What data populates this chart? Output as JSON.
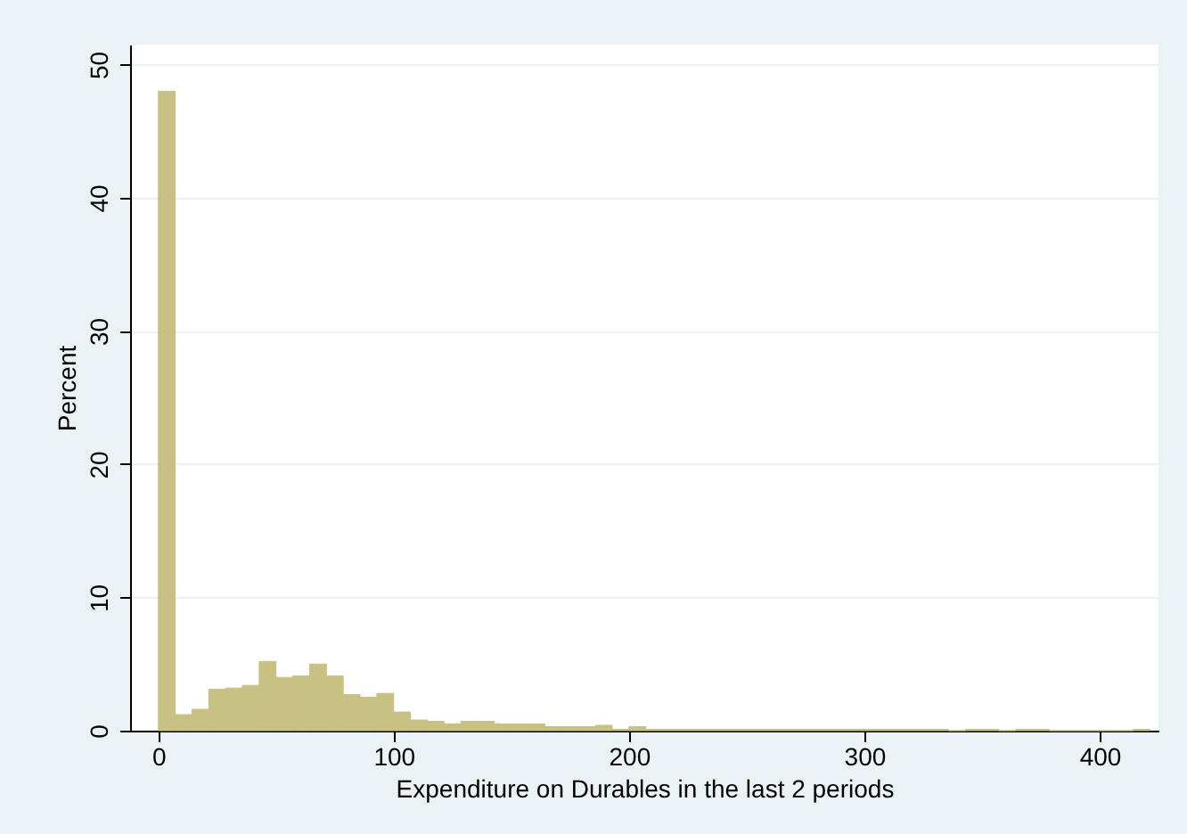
{
  "chart_data": {
    "type": "histogram",
    "xlabel": "Expenditure on Durables in the last 2 periods",
    "ylabel": "Percent",
    "bins": [
      0,
      7.143,
      14.286,
      21.429,
      28.571,
      35.714,
      42.857,
      50,
      57.143,
      64.286,
      71.429,
      78.571,
      85.714,
      92.857,
      100,
      107.143,
      114.286,
      121.429,
      128.571,
      135.714,
      142.857,
      150,
      157.143,
      164.286,
      171.429,
      178.571,
      185.714,
      192.857,
      200,
      207.143,
      214.286,
      221.429,
      228.571,
      235.714,
      242.857,
      250,
      257.143,
      264.286,
      271.429,
      278.571,
      285.714,
      292.857,
      300,
      307.143,
      314.286,
      321.429,
      328.571,
      335.714,
      342.857,
      350,
      357.143,
      364.286,
      371.429,
      378.571,
      385.714,
      392.857,
      400,
      407.143,
      414.286,
      421.429
    ],
    "values": [
      48,
      1.2,
      1.6,
      3.1,
      3.2,
      3.4,
      5.2,
      4.0,
      4.1,
      5.0,
      4.1,
      2.7,
      2.5,
      2.8,
      1.4,
      0.8,
      0.7,
      0.5,
      0.7,
      0.7,
      0.5,
      0.5,
      0.5,
      0.3,
      0.3,
      0.3,
      0.4,
      0.1,
      0.3,
      0.1,
      0.1,
      0.1,
      0.1,
      0.1,
      0.1,
      0.1,
      0.1,
      0.1,
      0.1,
      0.1,
      0.1,
      0.1,
      0.1,
      0.1,
      0.1,
      0.1,
      0.1,
      0,
      0.1,
      0.1,
      0,
      0.1,
      0.1,
      0,
      0,
      0,
      0,
      0,
      0.1
    ],
    "color": "#c8c184",
    "xlim": [
      -12,
      425
    ],
    "ylim": [
      0,
      51.5
    ],
    "xticks": [
      0,
      100,
      200,
      300,
      400
    ],
    "yticks": [
      0,
      10,
      20,
      30,
      40,
      50
    ],
    "grid": "y"
  }
}
